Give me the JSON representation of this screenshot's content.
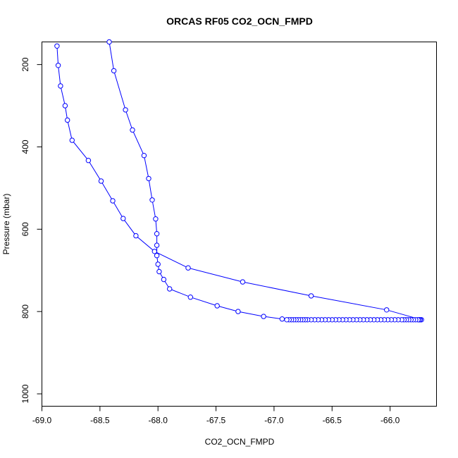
{
  "chart_data": {
    "type": "line",
    "title": "ORCAS RF05 CO2_OCN_FMPD",
    "xlabel": "CO2_OCN_FMPD",
    "ylabel": "Pressure (mbar)",
    "xlim": [
      -69.0,
      -65.6
    ],
    "ylim": [
      1030,
      145
    ],
    "y_reversed": true,
    "grid": false,
    "x_ticks": [
      -69.0,
      -68.5,
      -68.0,
      -67.5,
      -67.0,
      -66.5,
      -66.0
    ],
    "x_tick_labels": [
      "-69.0",
      "-68.5",
      "-68.0",
      "-67.5",
      "-67.0",
      "-66.5",
      "-66.0"
    ],
    "y_ticks": [
      200,
      400,
      600,
      800,
      1000
    ],
    "y_tick_labels": [
      "200",
      "400",
      "600",
      "800",
      "1000"
    ],
    "colors": {
      "series": "#0000ff",
      "axes": "#000000"
    },
    "series": [
      {
        "marker": "open-circle",
        "points": [
          [
            -68.87,
            155
          ],
          [
            -68.86,
            202
          ],
          [
            -68.84,
            252
          ],
          [
            -68.8,
            300
          ],
          [
            -68.78,
            335
          ],
          [
            -68.74,
            384
          ],
          [
            -68.6,
            433
          ],
          [
            -68.49,
            483
          ],
          [
            -68.39,
            531
          ],
          [
            -68.3,
            574
          ],
          [
            -68.19,
            616
          ],
          [
            -68.03,
            654
          ],
          [
            -67.74,
            694
          ],
          [
            -67.27,
            728
          ],
          [
            -66.68,
            762
          ],
          [
            -66.03,
            796
          ],
          [
            -65.73,
            820
          ],
          [
            -65.74,
            820
          ],
          [
            -65.75,
            820
          ],
          [
            -65.76,
            820
          ],
          [
            -65.78,
            820
          ],
          [
            -65.8,
            820
          ],
          [
            -65.82,
            820
          ],
          [
            -65.84,
            820
          ],
          [
            -65.86,
            820
          ],
          [
            -65.88,
            820
          ],
          [
            -65.9,
            820
          ],
          [
            -65.93,
            820
          ],
          [
            -65.96,
            820
          ],
          [
            -65.99,
            820
          ],
          [
            -66.02,
            820
          ],
          [
            -66.05,
            820
          ],
          [
            -66.08,
            820
          ],
          [
            -66.11,
            820
          ],
          [
            -66.14,
            820
          ],
          [
            -66.17,
            820
          ],
          [
            -66.2,
            820
          ],
          [
            -66.23,
            820
          ],
          [
            -66.26,
            820
          ],
          [
            -66.29,
            820
          ],
          [
            -66.32,
            820
          ],
          [
            -66.35,
            820
          ],
          [
            -66.38,
            820
          ],
          [
            -66.41,
            820
          ],
          [
            -66.44,
            820
          ],
          [
            -66.47,
            820
          ],
          [
            -66.5,
            820
          ],
          [
            -66.53,
            820
          ],
          [
            -66.56,
            820
          ],
          [
            -66.59,
            820
          ],
          [
            -66.62,
            820
          ],
          [
            -66.65,
            820
          ],
          [
            -66.68,
            820
          ],
          [
            -66.71,
            820
          ],
          [
            -66.73,
            820
          ],
          [
            -66.75,
            820
          ],
          [
            -66.77,
            820
          ],
          [
            -66.79,
            820
          ],
          [
            -66.81,
            820
          ],
          [
            -66.83,
            820
          ],
          [
            -66.85,
            820
          ],
          [
            -66.87,
            820
          ],
          [
            -66.89,
            820
          ],
          [
            -66.93,
            818
          ],
          [
            -67.09,
            812
          ],
          [
            -67.31,
            800
          ],
          [
            -67.49,
            786
          ],
          [
            -67.72,
            765
          ],
          [
            -67.9,
            745
          ],
          [
            -67.95,
            722
          ],
          [
            -67.99,
            703
          ],
          [
            -68.0,
            685
          ],
          [
            -68.01,
            664
          ],
          [
            -68.01,
            639
          ],
          [
            -68.01,
            611
          ],
          [
            -68.02,
            575
          ],
          [
            -68.05,
            529
          ],
          [
            -68.08,
            477
          ],
          [
            -68.12,
            421
          ],
          [
            -68.22,
            359
          ],
          [
            -68.28,
            310
          ],
          [
            -68.38,
            215
          ],
          [
            -68.42,
            145
          ]
        ]
      }
    ]
  }
}
